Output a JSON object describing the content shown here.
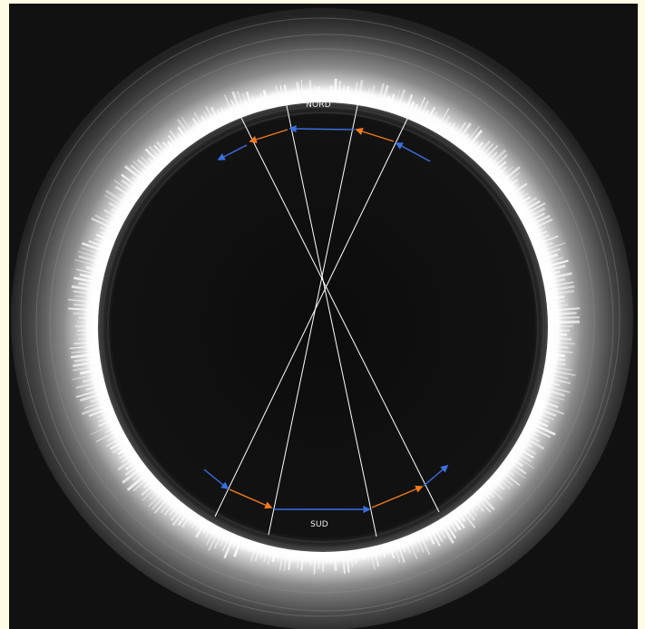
{
  "image": {
    "kind": "solar eclipse corona with pole diagram",
    "colors": {
      "page_background": "#fffde6",
      "sky": "#111111",
      "moon_disk": "#0d0d0d",
      "corona": "#ffffff",
      "construction_lines": "#ffffff",
      "blue_arrows": "#3b6fe0",
      "orange_arrows": "#f07a1e"
    }
  },
  "labels": {
    "north": "NORD",
    "south": "SUD"
  },
  "icons": {
    "arrows": "arrow-icon"
  }
}
